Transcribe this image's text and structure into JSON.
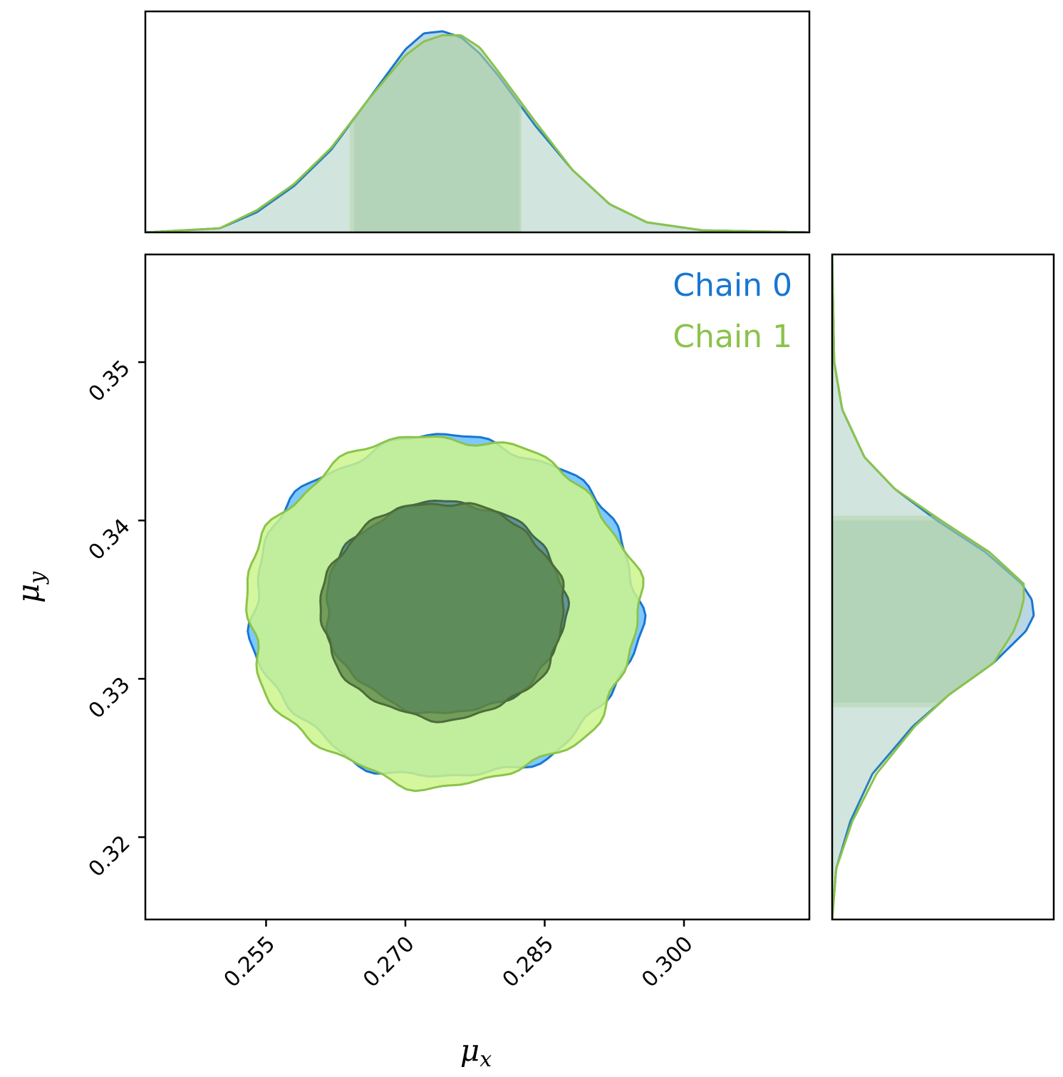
{
  "chart_data": {
    "type": "corner",
    "xlabel": "μx",
    "ylabel": "μy",
    "xlabel_parts": {
      "base": "μ",
      "sub": "x"
    },
    "ylabel_parts": {
      "base": "μ",
      "sub": "y"
    },
    "xlim": [
      0.242,
      0.3135
    ],
    "ylim": [
      0.3148,
      0.3568
    ],
    "xticks": [
      0.255,
      0.27,
      0.285,
      0.3
    ],
    "xtick_labels": [
      "0.255",
      "0.270",
      "0.285",
      "0.300"
    ],
    "yticks": [
      0.32,
      0.33,
      0.34,
      0.35
    ],
    "ytick_labels": [
      "0.32",
      "0.33",
      "0.34",
      "0.35"
    ],
    "legend_placement": "top-right",
    "series": [
      {
        "name": "Chain 0",
        "color": "#1976d2",
        "fill_outer": "#66bfff",
        "fill_inner": "#4a7fa0",
        "center": [
          0.2743,
          0.3345
        ],
        "sigma": [
          0.0085,
          0.0044
        ],
        "credible_interval_x": [
          0.2645,
          0.2823
        ],
        "credible_interval_y": [
          0.3285,
          0.34
        ],
        "marginal_x": {
          "x": [
            0.242,
            0.25,
            0.254,
            0.258,
            0.262,
            0.266,
            0.27,
            0.272,
            0.274,
            0.276,
            0.278,
            0.28,
            0.284,
            0.288,
            0.292,
            0.296,
            0.302,
            0.3135
          ],
          "density": [
            0.0,
            0.02,
            0.1,
            0.23,
            0.41,
            0.66,
            0.91,
            0.99,
            1.0,
            0.97,
            0.89,
            0.78,
            0.53,
            0.31,
            0.14,
            0.05,
            0.01,
            0.0
          ]
        },
        "marginal_y": {
          "y": [
            0.3148,
            0.318,
            0.321,
            0.324,
            0.327,
            0.329,
            0.331,
            0.333,
            0.334,
            0.335,
            0.336,
            0.338,
            0.34,
            0.342,
            0.344,
            0.347,
            0.35,
            0.3568
          ],
          "density": [
            0.0,
            0.02,
            0.09,
            0.2,
            0.4,
            0.58,
            0.8,
            0.96,
            1.0,
            0.99,
            0.94,
            0.76,
            0.52,
            0.31,
            0.16,
            0.05,
            0.01,
            0.0
          ]
        }
      },
      {
        "name": "Chain 1",
        "color": "#8bc34a",
        "fill_outer": "#ccf58c",
        "fill_inner": "#5e8a4a",
        "center": [
          0.274,
          0.3343
        ],
        "sigma": [
          0.0086,
          0.0045
        ],
        "credible_interval_x": [
          0.264,
          0.2825
        ],
        "credible_interval_y": [
          0.3282,
          0.3403
        ],
        "marginal_x": {
          "x": [
            0.242,
            0.25,
            0.254,
            0.258,
            0.262,
            0.266,
            0.27,
            0.272,
            0.274,
            0.276,
            0.278,
            0.28,
            0.284,
            0.288,
            0.292,
            0.296,
            0.302,
            0.3135
          ],
          "density": [
            0.0,
            0.02,
            0.11,
            0.24,
            0.42,
            0.66,
            0.88,
            0.95,
            0.98,
            0.98,
            0.92,
            0.8,
            0.55,
            0.31,
            0.14,
            0.05,
            0.01,
            0.0
          ]
        },
        "marginal_y": {
          "y": [
            0.3148,
            0.318,
            0.321,
            0.324,
            0.327,
            0.329,
            0.331,
            0.333,
            0.334,
            0.335,
            0.336,
            0.338,
            0.34,
            0.342,
            0.344,
            0.347,
            0.35,
            0.3568
          ],
          "density": [
            0.0,
            0.02,
            0.1,
            0.22,
            0.41,
            0.58,
            0.8,
            0.9,
            0.93,
            0.95,
            0.95,
            0.78,
            0.54,
            0.31,
            0.16,
            0.05,
            0.01,
            0.0
          ]
        }
      }
    ]
  }
}
